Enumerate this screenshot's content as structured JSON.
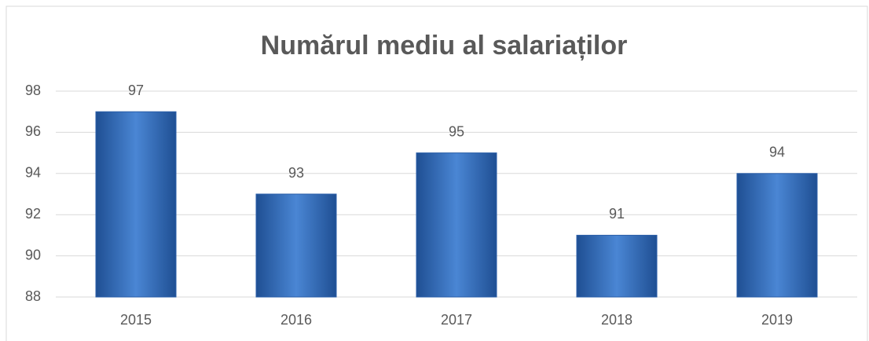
{
  "chart_data": {
    "type": "bar",
    "title": "Numărul mediu al salariaților",
    "categories": [
      "2015",
      "2016",
      "2017",
      "2018",
      "2019"
    ],
    "values": [
      97,
      93,
      95,
      91,
      94
    ],
    "color": "#4a86d4",
    "ylim": [
      88,
      98
    ],
    "yticks": [
      88,
      90,
      92,
      94,
      96,
      98
    ],
    "grid": true
  }
}
